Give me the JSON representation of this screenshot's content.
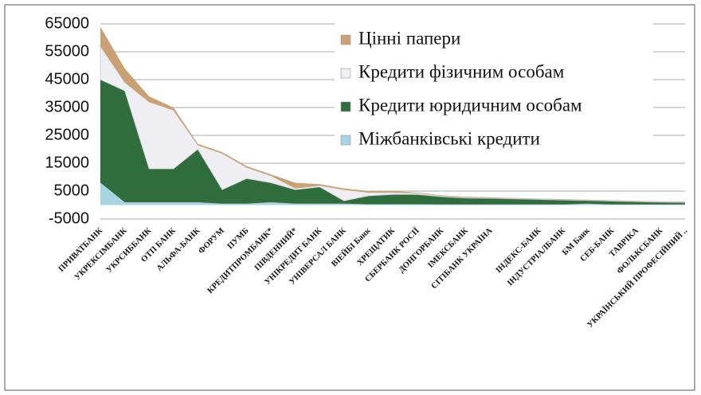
{
  "chart_data": {
    "type": "stacked_area",
    "categories": [
      "ПРИВАТБАНК",
      "УКРЕКСІМБАНК",
      "УКРСИББАНК",
      "ОТП БАНК",
      "АЛЬФА-БАНК",
      "ФОРУМ",
      "ПУМБ",
      "КРЕДИТПРОМБАНК*",
      "ПІВДЕННИЙ*",
      "УНІКРЕДИТ БАНК",
      "УНІВЕРСАЛ БАНК",
      "ВІЕЙБІ Банк",
      "ХРЕЩАТИК",
      "СБЕРБАНК РОСІЇ",
      "ДОНГОРБАНК",
      "ІМЕКСБАНК",
      "СІТІБАНК УКРАЇНА",
      null,
      "ІНДЕКС-БАНК",
      "ІНДУСТРІАЛБАНК",
      "БМ Банк",
      "СЕБ-БАНК",
      "ТАВРІКА",
      "ФОЛЬКСБАНК",
      "УКРАЇНСЬКИЙ ПРОФЕСІЙНИЙ .."
    ],
    "series": [
      {
        "name": "Міжбанківські кредити",
        "color": "#a9d5e2",
        "values": [
          8000,
          1000,
          1000,
          1000,
          1000,
          500,
          500,
          1000,
          500,
          500,
          500,
          300,
          300,
          300,
          200,
          200,
          200,
          200,
          200,
          200,
          500,
          200,
          200,
          200,
          200
        ]
      },
      {
        "name": "Кредити юридичним особам",
        "color": "#2f6d3d",
        "values": [
          37000,
          40000,
          12000,
          12000,
          19000,
          5000,
          9000,
          7000,
          5000,
          6000,
          1000,
          3000,
          3500,
          3500,
          2800,
          2300,
          2200,
          2000,
          1800,
          1600,
          1100,
          1200,
          1000,
          800,
          700
        ]
      },
      {
        "name": "Кредити фізичним особам",
        "color": "#eeeef3",
        "values": [
          12000,
          3000,
          24000,
          21000,
          1500,
          13000,
          4000,
          2500,
          500,
          500,
          4000,
          1200,
          700,
          500,
          300,
          300,
          200,
          200,
          200,
          200,
          200,
          200,
          200,
          200,
          200
        ]
      },
      {
        "name": "Цінні папери",
        "color": "#c9a274",
        "values": [
          7000,
          5000,
          2000,
          1000,
          500,
          500,
          500,
          500,
          2000,
          500,
          500,
          500,
          500,
          200,
          200,
          200,
          200,
          100,
          100,
          100,
          100,
          100,
          100,
          100,
          100
        ]
      }
    ],
    "ylim": [
      -5000,
      65000
    ],
    "yticks": [
      -5000,
      5000,
      15000,
      25000,
      35000,
      45000,
      55000,
      65000
    ],
    "grid": true,
    "legend": "upper right"
  }
}
